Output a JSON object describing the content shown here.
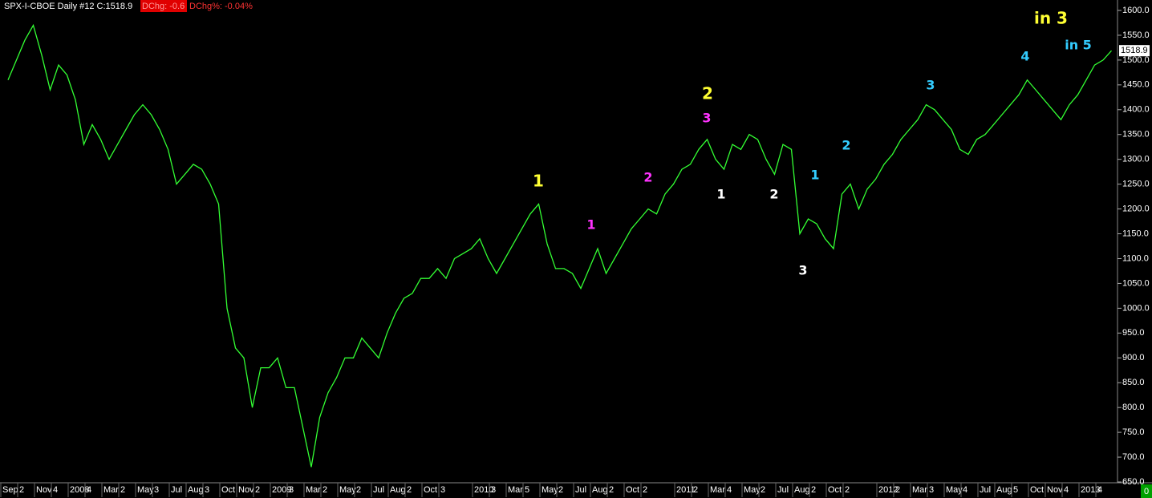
{
  "chart_data": {
    "type": "line",
    "title": "SPX-I-CBOE  Daily  #12 C:1518.9",
    "change_label": "DChg: -0.6",
    "change_pct_label": "DChg%: -0.04%",
    "last_price_label": "1518.9",
    "corner_label": "0",
    "color": "#33ff33",
    "grid": false,
    "ylim": [
      650,
      1621
    ],
    "yticks": [
      {
        "value": 650,
        "label": "650.0"
      },
      {
        "value": 700,
        "label": "700.0"
      },
      {
        "value": 750,
        "label": "750.0"
      },
      {
        "value": 800,
        "label": "800.0"
      },
      {
        "value": 850,
        "label": "850.0"
      },
      {
        "value": 900,
        "label": "900.0"
      },
      {
        "value": 950,
        "label": "950.0"
      },
      {
        "value": 1000,
        "label": "1000.0"
      },
      {
        "value": 1050,
        "label": "1050.0"
      },
      {
        "value": 1100,
        "label": "1100.0"
      },
      {
        "value": 1150,
        "label": "1150.0"
      },
      {
        "value": 1200,
        "label": "1200.0"
      },
      {
        "value": 1250,
        "label": "1250.0"
      },
      {
        "value": 1300,
        "label": "1300.0"
      },
      {
        "value": 1350,
        "label": "1350.0"
      },
      {
        "value": 1400,
        "label": "1400.0"
      },
      {
        "value": 1450,
        "label": "1450.0"
      },
      {
        "value": 1500,
        "label": "1500.0"
      },
      {
        "value": 1550,
        "label": "1550.0"
      },
      {
        "value": 1600,
        "label": "1600.0"
      }
    ],
    "categories": [
      "Sep",
      null,
      "2",
      null,
      "Nov",
      null,
      "4",
      null,
      "2008",
      null,
      "4",
      null,
      "Mar",
      null,
      "2",
      null,
      "May",
      null,
      "3",
      null,
      "Jul",
      null,
      "Aug",
      null,
      "3",
      null,
      "Oct",
      null,
      "Nov",
      null,
      "2",
      null,
      "2009",
      null,
      "3",
      null,
      "Mar",
      null,
      "2",
      null,
      "May",
      null,
      "2",
      null,
      "Jul",
      null,
      "Aug",
      null,
      "2",
      null,
      "Oct",
      null,
      "3",
      null,
      null,
      null,
      "2010",
      null,
      "3",
      null,
      "Mar",
      null,
      "5",
      null,
      "May",
      null,
      "2",
      null,
      "Jul",
      null,
      "Aug",
      null,
      "2",
      null,
      "Oct",
      null,
      "2",
      null,
      null,
      null,
      "2011",
      null,
      "2",
      null,
      "Mar",
      null,
      "4",
      null,
      "May",
      null,
      "2",
      null,
      "Jul",
      null,
      "Aug",
      null,
      "2",
      null,
      "Oct",
      null,
      "2",
      null,
      null,
      null,
      "2012",
      null,
      "2",
      null,
      "Mar",
      null,
      "3",
      null,
      "May",
      null,
      "4",
      null,
      "Jul",
      null,
      "Aug",
      null,
      "5",
      null,
      "Oct",
      null,
      "Nov",
      null,
      "4",
      null,
      "2013",
      null,
      "4",
      null
    ],
    "values": [
      1460,
      1500,
      1540,
      1570,
      1510,
      1440,
      1490,
      1470,
      1420,
      1330,
      1370,
      1340,
      1300,
      1330,
      1360,
      1390,
      1410,
      1390,
      1360,
      1320,
      1250,
      1270,
      1290,
      1280,
      1250,
      1210,
      1000,
      920,
      900,
      800,
      880,
      880,
      900,
      840,
      840,
      760,
      680,
      780,
      830,
      860,
      900,
      900,
      940,
      920,
      900,
      950,
      990,
      1020,
      1030,
      1060,
      1060,
      1080,
      1060,
      1100,
      1110,
      1120,
      1140,
      1100,
      1070,
      1100,
      1130,
      1160,
      1190,
      1210,
      1130,
      1080,
      1080,
      1070,
      1040,
      1080,
      1120,
      1070,
      1100,
      1130,
      1160,
      1180,
      1200,
      1190,
      1230,
      1250,
      1280,
      1290,
      1320,
      1340,
      1300,
      1280,
      1330,
      1320,
      1350,
      1340,
      1300,
      1270,
      1330,
      1320,
      1150,
      1180,
      1170,
      1140,
      1120,
      1230,
      1250,
      1200,
      1240,
      1260,
      1290,
      1310,
      1340,
      1360,
      1380,
      1410,
      1400,
      1380,
      1360,
      1320,
      1310,
      1340,
      1350,
      1370,
      1390,
      1410,
      1430,
      1460,
      1440,
      1420,
      1400,
      1380,
      1410,
      1430,
      1460,
      1490,
      1500,
      1518.9
    ],
    "annotations": [
      {
        "text": "1",
        "color": "#ffff33"
      },
      {
        "text": "1",
        "color": "#ff33ff"
      },
      {
        "text": "2",
        "color": "#ff33ff"
      },
      {
        "text": "2",
        "color": "#ffff33"
      },
      {
        "text": "3",
        "color": "#ff33ff"
      },
      {
        "text": "1",
        "color": "#ffffff"
      },
      {
        "text": "2",
        "color": "#ffffff"
      },
      {
        "text": "3",
        "color": "#ffffff"
      },
      {
        "text": "1",
        "color": "#33ccff"
      },
      {
        "text": "2",
        "color": "#33ccff"
      },
      {
        "text": "3",
        "color": "#33ccff"
      },
      {
        "text": "4",
        "color": "#33ccff"
      },
      {
        "text": "in 3",
        "color": "#ffff33"
      },
      {
        "text": "in 5",
        "color": "#33ccff"
      }
    ]
  }
}
